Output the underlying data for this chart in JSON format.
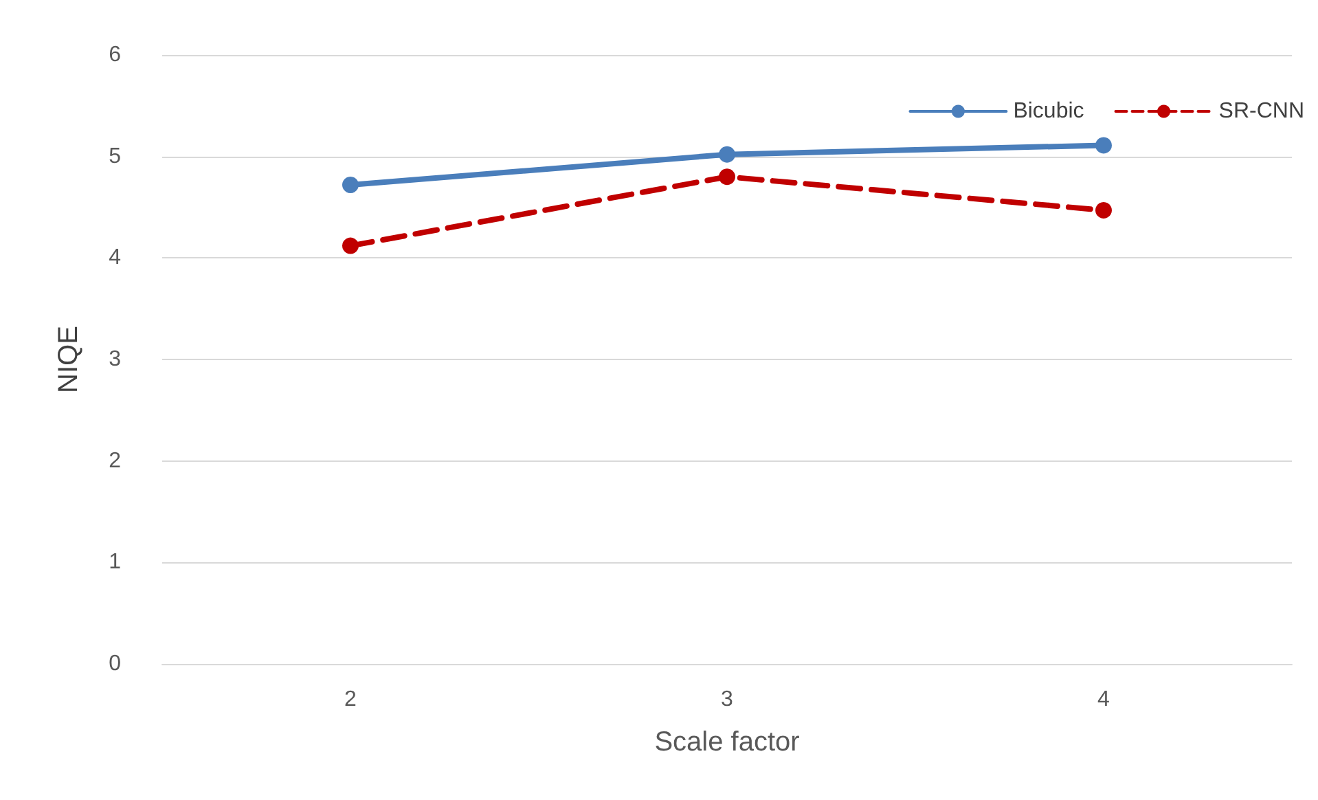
{
  "chart_data": {
    "type": "line",
    "xlabel": "Scale factor",
    "ylabel": "NIQE",
    "categories": [
      "2",
      "3",
      "4"
    ],
    "series": [
      {
        "name": "Bicubic",
        "color": "#4a7ebb",
        "values": [
          4.72,
          5.02,
          5.11
        ],
        "line_style": "solid"
      },
      {
        "name": "SR-CNN",
        "color": "#c00000",
        "values": [
          4.12,
          4.8,
          4.47
        ],
        "line_style": "dashed"
      }
    ],
    "ylim": [
      0,
      6
    ],
    "yticks": [
      0,
      1,
      2,
      3,
      4,
      5,
      6
    ],
    "grid": "y",
    "legend": "top right",
    "marker": "circle"
  }
}
